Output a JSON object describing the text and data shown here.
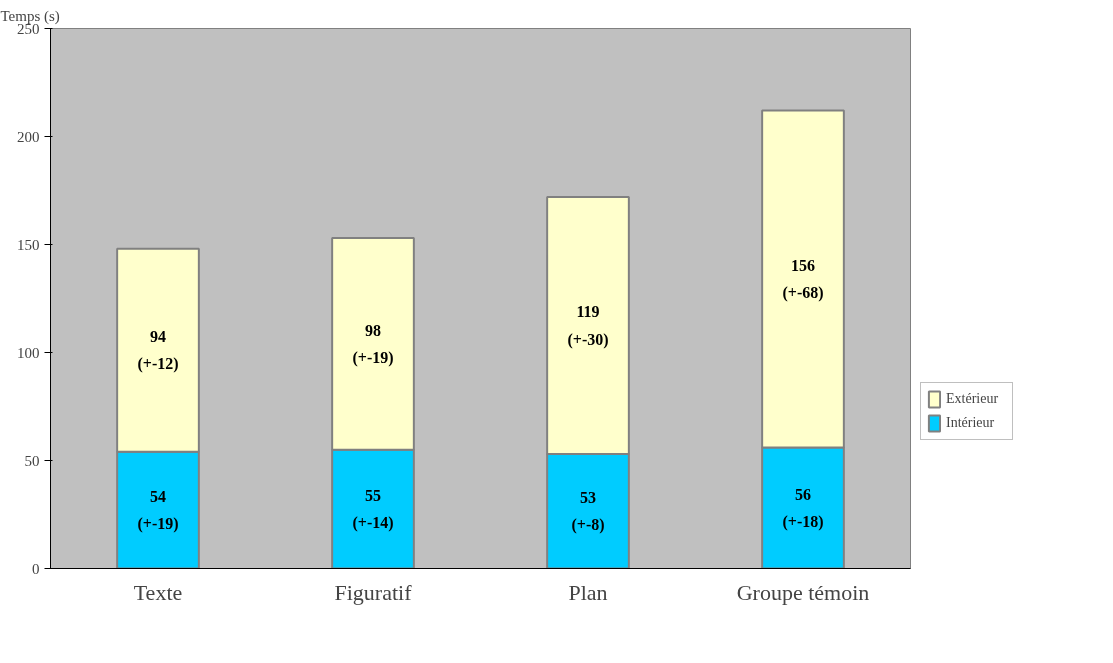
{
  "chart_data": {
    "type": "bar",
    "stacked": true,
    "ylabel": "Temps (s)",
    "categories": [
      "Texte",
      "Figuratif",
      "Plan",
      "Groupe témoin"
    ],
    "series": [
      {
        "name": "Intérieur",
        "color": "#00ccff",
        "values": [
          54,
          55,
          53,
          56
        ],
        "value_labels": [
          "54\n(+-19)",
          "55\n(+-14)",
          "53\n(+-8)",
          "56\n(+-18)"
        ]
      },
      {
        "name": "Extérieur",
        "color": "#ffffcc",
        "values": [
          94,
          98,
          119,
          156
        ],
        "value_labels": [
          "94\n(+-12)",
          "98\n(+-19)",
          "119\n(+-30)",
          "156\n(+-68)"
        ]
      }
    ],
    "ylim": [
      0,
      250
    ],
    "yticks": [
      0,
      50,
      100,
      150,
      200,
      250
    ],
    "grid": false,
    "legend": "right"
  }
}
